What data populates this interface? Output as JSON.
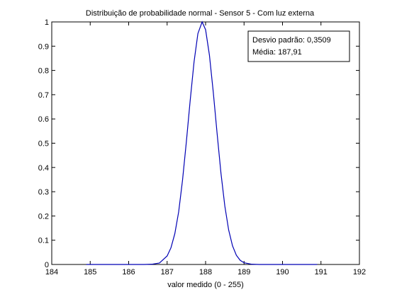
{
  "chart_data": {
    "type": "line",
    "title": "Distribuição de probabilidade normal - Sensor 5 - Com luz externa",
    "xlabel": "valor medido (0 - 255)",
    "ylabel": "",
    "xlim": [
      184,
      192
    ],
    "ylim": [
      0,
      1
    ],
    "xticks": [
      184,
      185,
      186,
      187,
      188,
      189,
      190,
      191,
      192
    ],
    "yticks": [
      0,
      0.1,
      0.2,
      0.3,
      0.4,
      0.5,
      0.6,
      0.7,
      0.8,
      0.9,
      1
    ],
    "xtick_labels": [
      "184",
      "185",
      "186",
      "187",
      "188",
      "189",
      "190",
      "191",
      "192"
    ],
    "ytick_labels": [
      "0",
      "0.1",
      "0.2",
      "0.3",
      "0.4",
      "0.5",
      "0.6",
      "0.7",
      "0.8",
      "0.9",
      "1"
    ],
    "grid": false,
    "series": [
      {
        "color": "#0000b4",
        "mean": 187.91,
        "std": 0.3509,
        "x_range": [
          184.9,
          190.9
        ],
        "x": [
          184.9,
          185.2,
          185.5,
          185.8,
          186.1,
          186.4,
          186.6,
          186.8,
          187.0,
          187.1,
          187.2,
          187.3,
          187.4,
          187.5,
          187.6,
          187.7,
          187.8,
          187.91,
          188.0,
          188.1,
          188.2,
          188.3,
          188.4,
          188.5,
          188.6,
          188.7,
          188.8,
          188.9,
          189.0,
          189.2,
          189.4,
          189.7,
          190.0,
          190.3,
          190.6,
          190.9
        ],
        "y": [
          0.0,
          0.0,
          0.0,
          0.0,
          0.0,
          0.0,
          0.001,
          0.006,
          0.035,
          0.069,
          0.127,
          0.217,
          0.347,
          0.506,
          0.677,
          0.835,
          0.952,
          1.0,
          0.968,
          0.863,
          0.71,
          0.539,
          0.376,
          0.241,
          0.142,
          0.077,
          0.038,
          0.017,
          0.007,
          0.001,
          0.0,
          0.0,
          0.0,
          0.0,
          0.0,
          0.0
        ]
      }
    ],
    "annotation": {
      "lines": [
        "Desvio padrão: 0,3509",
        "Média: 187,91"
      ],
      "placement": "top-right"
    }
  }
}
